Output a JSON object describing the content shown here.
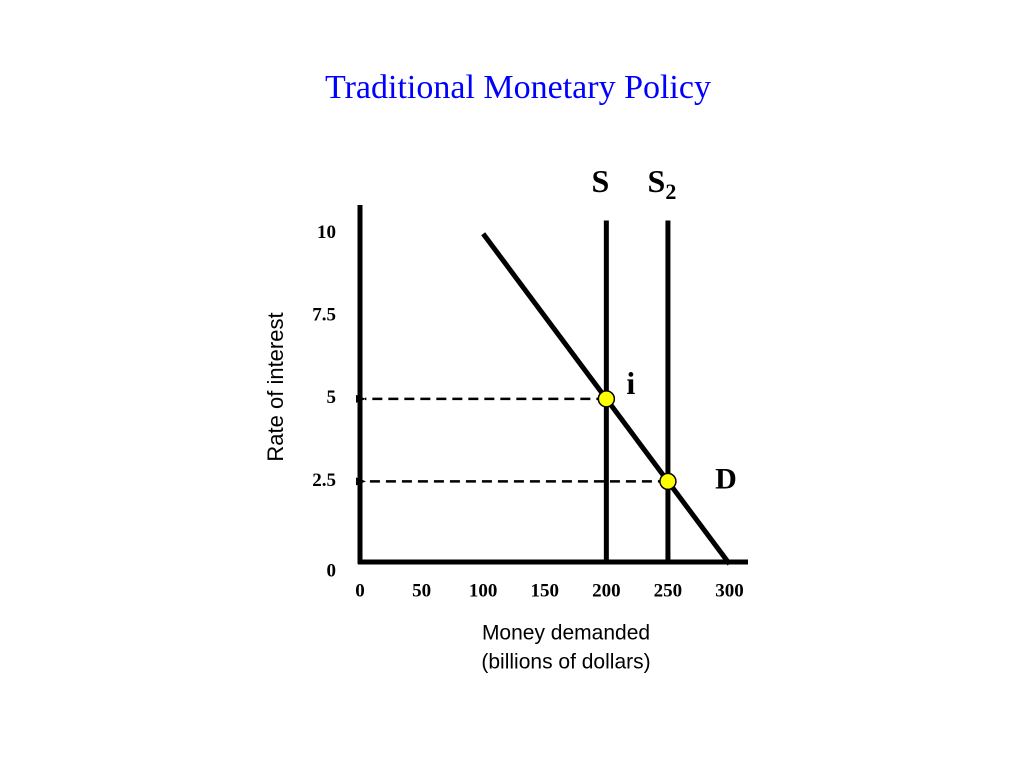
{
  "chart_data": {
    "type": "line",
    "title": "Traditional Monetary Policy",
    "y_label": "Rate of interest",
    "x_label": [
      "Money demanded",
      "(billions of dollars)"
    ],
    "xlim": [
      0,
      315
    ],
    "ylim": [
      0,
      10.9
    ],
    "xticks": [
      0,
      50,
      100,
      150,
      200,
      250,
      300
    ],
    "yticks": [
      0,
      2.5,
      5,
      7.5,
      10
    ],
    "series": [
      {
        "name": "D",
        "color": "#000000",
        "x": [
          100,
          300
        ],
        "values": [
          10,
          0
        ]
      },
      {
        "name": "S",
        "color": "#000000",
        "x": [
          200,
          200
        ],
        "values": [
          0,
          10.4
        ]
      },
      {
        "name": "S",
        "name_subscript": "2",
        "color": "#000000",
        "x": [
          250,
          250
        ],
        "values": [
          0,
          10.4
        ]
      }
    ],
    "points": {
      "x": [
        200,
        250
      ],
      "values": [
        5,
        2.5
      ],
      "color": "#ffff00",
      "label": "i"
    }
  }
}
